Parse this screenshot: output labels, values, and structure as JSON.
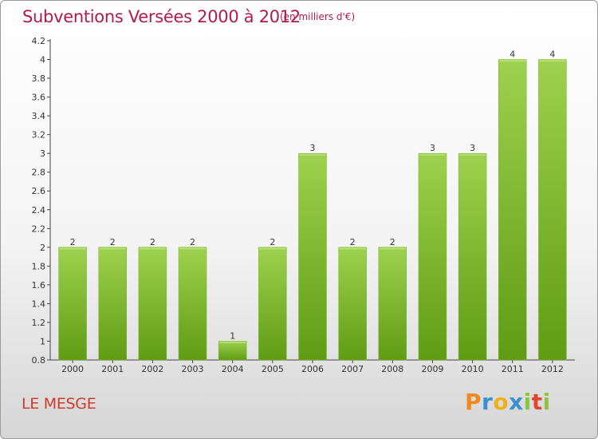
{
  "header": {
    "title": "Subventions Versées 2000 à 2012",
    "subtitle": "(en milliers d'€)"
  },
  "footer": {
    "commune": "LE MESGE",
    "logo": "Proxiti"
  },
  "colors": {
    "title": "#b01b4a",
    "bar_top": "#9ed14f",
    "bar_bottom": "#5f9c14",
    "commune": "#d23a2a"
  },
  "chart_data": {
    "type": "bar",
    "categories": [
      "2000",
      "2001",
      "2002",
      "2003",
      "2004",
      "2005",
      "2006",
      "2007",
      "2008",
      "2009",
      "2010",
      "2011",
      "2012"
    ],
    "values": [
      2,
      2,
      2,
      2,
      1,
      2,
      3,
      2,
      2,
      3,
      3,
      4,
      4
    ],
    "data_labels": [
      "2",
      "2",
      "2",
      "2",
      "1",
      "2",
      "3",
      "2",
      "2",
      "3",
      "3",
      "4",
      "4"
    ],
    "y_ticks": [
      "0.8",
      "1",
      "1.2",
      "1.4",
      "1.6",
      "1.8",
      "2",
      "2.2",
      "2.4",
      "2.6",
      "2.8",
      "3",
      "3.2",
      "3.4",
      "3.6",
      "3.8",
      "4",
      "4.2"
    ],
    "ylim": [
      0.8,
      4.2
    ],
    "grid": false
  }
}
